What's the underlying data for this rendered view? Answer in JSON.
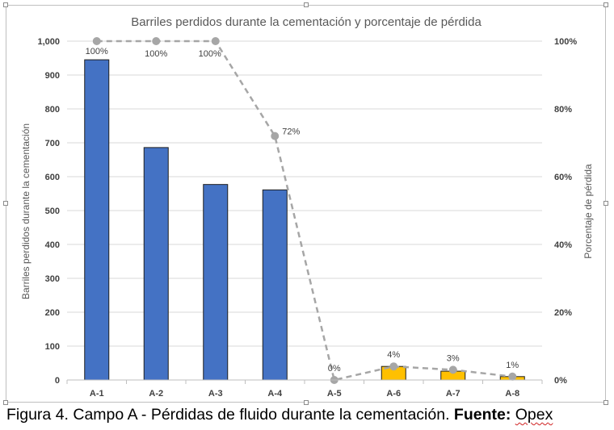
{
  "chart_data": {
    "type": "bar",
    "title": "Barriles perdidos durante la cementación y porcentaje de pérdida",
    "ylabel": "Barriles perdidos durante la cementación",
    "y2label": "Porcentaje de pérdida",
    "categories": [
      "A-1",
      "A-2",
      "A-3",
      "A-4",
      "A-5",
      "A-6",
      "A-7",
      "A-8"
    ],
    "series": [
      {
        "type": "bar",
        "axis": "left",
        "values": [
          945,
          686,
          577,
          561,
          0,
          40,
          26,
          10
        ],
        "colors": [
          "#4472c4",
          "#4472c4",
          "#4472c4",
          "#4472c4",
          "#4472c4",
          "#ffc000",
          "#ffc000",
          "#ffc000"
        ]
      },
      {
        "type": "line",
        "axis": "right",
        "values": [
          100,
          100,
          100,
          72,
          0,
          4,
          3,
          1
        ],
        "labels": [
          "100%",
          "100%",
          "100%",
          "72%",
          "0%",
          "4%",
          "3%",
          "1%"
        ],
        "color": "#a6a6a6",
        "style": "dashed"
      }
    ],
    "ylim": [
      0,
      1000
    ],
    "yticks": [
      "0",
      "100",
      "200",
      "300",
      "400",
      "500",
      "600",
      "700",
      "800",
      "900",
      "1,000"
    ],
    "y2lim": [
      0,
      100
    ],
    "y2ticks": [
      "0%",
      "20%",
      "40%",
      "60%",
      "80%",
      "100%"
    ],
    "grid": true,
    "legend": "none"
  },
  "caption": {
    "prefix": "Figura 4. Campo A - Pérdidas de fluido durante la cementación. ",
    "source_label": "Fuente:",
    "source_value": "Opex"
  }
}
